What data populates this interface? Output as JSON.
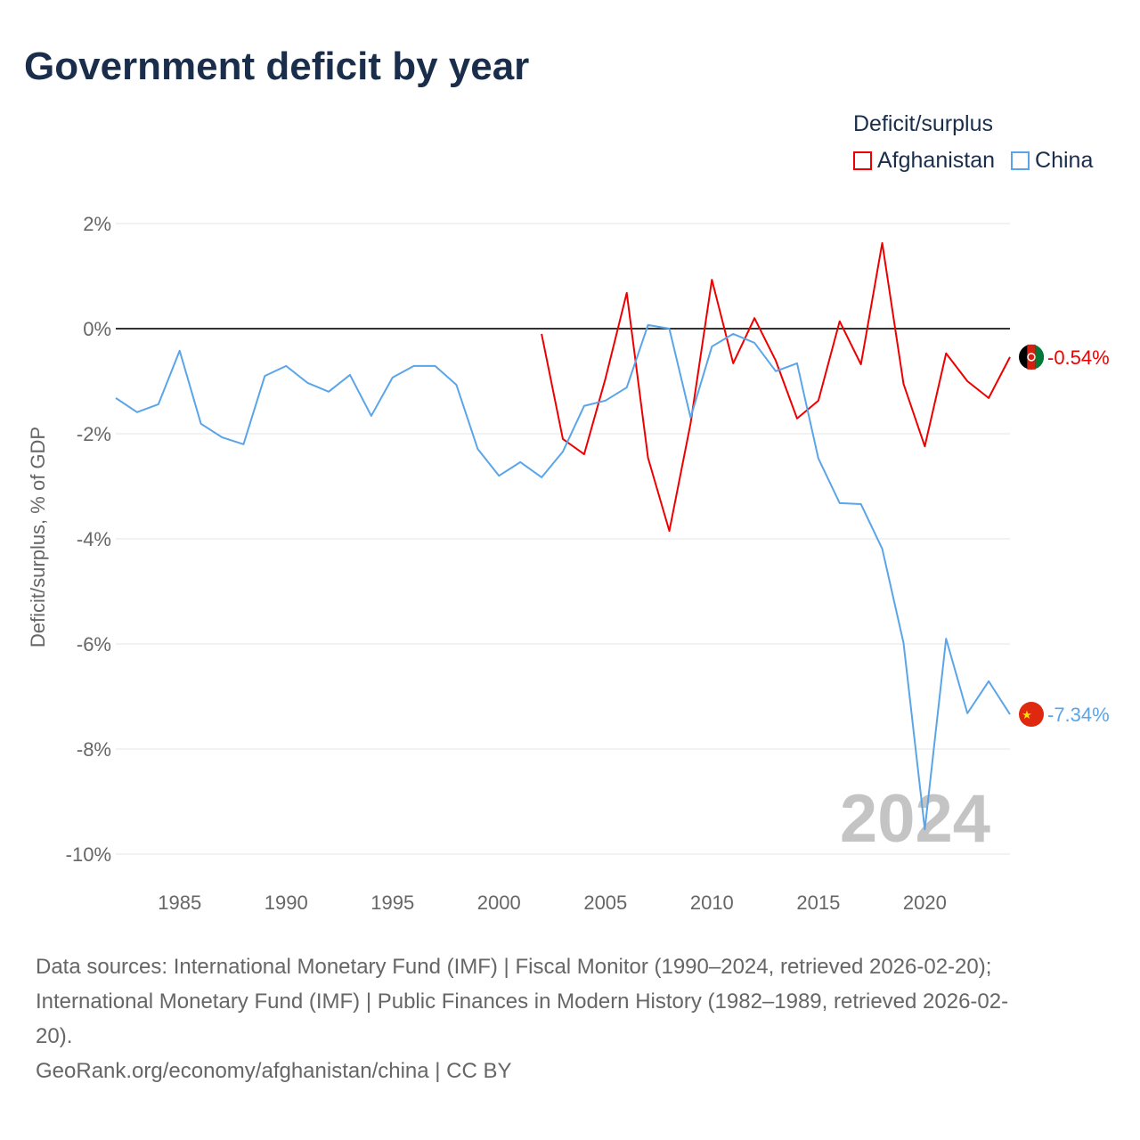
{
  "title": "Government deficit by year",
  "chart_data": {
    "type": "line",
    "title": "Government deficit by year",
    "xlabel": "",
    "ylabel": "Deficit/surplus, % of GDP",
    "ylim": [
      -10,
      2
    ],
    "xlim": [
      1982,
      2024
    ],
    "yticks": [
      2,
      0,
      -2,
      -4,
      -6,
      -8,
      -10
    ],
    "ytick_labels": [
      "2%",
      "0%",
      "-2%",
      "-4%",
      "-6%",
      "-8%",
      "-10%"
    ],
    "xticks": [
      1985,
      1990,
      1995,
      2000,
      2005,
      2010,
      2015,
      2020
    ],
    "xtick_labels": [
      "1985",
      "1990",
      "1995",
      "2000",
      "2005",
      "2010",
      "2015",
      "2020"
    ],
    "grid": true,
    "legend_title": "Deficit/surplus",
    "legend_position": "top-right",
    "year_watermark": "2024",
    "series": [
      {
        "name": "Afghanistan",
        "color": "#ee0000",
        "end_label": "-0.54%",
        "x": [
          2002,
          2003,
          2004,
          2005,
          2006,
          2007,
          2008,
          2009,
          2010,
          2011,
          2012,
          2013,
          2014,
          2015,
          2016,
          2017,
          2018,
          2019,
          2020,
          2021,
          2022,
          2023,
          2024
        ],
        "values": [
          -0.1,
          -2.1,
          -2.39,
          -0.95,
          0.68,
          -2.46,
          -3.85,
          -1.8,
          0.93,
          -0.66,
          0.2,
          -0.61,
          -1.71,
          -1.37,
          0.14,
          -0.68,
          1.63,
          -1.05,
          -2.24,
          -0.47,
          -1.0,
          -1.32,
          -0.54
        ]
      },
      {
        "name": "China",
        "color": "#5aa5ea",
        "end_label": "-7.34%",
        "x": [
          1982,
          1983,
          1984,
          1985,
          1986,
          1987,
          1988,
          1989,
          1990,
          1991,
          1992,
          1993,
          1994,
          1995,
          1996,
          1997,
          1998,
          1999,
          2000,
          2001,
          2002,
          2003,
          2004,
          2005,
          2006,
          2007,
          2008,
          2009,
          2010,
          2011,
          2012,
          2013,
          2014,
          2015,
          2016,
          2017,
          2018,
          2019,
          2020,
          2021,
          2022,
          2023,
          2024
        ],
        "values": [
          -1.32,
          -1.59,
          -1.44,
          -0.42,
          -1.81,
          -2.07,
          -2.2,
          -0.9,
          -0.71,
          -1.03,
          -1.2,
          -0.88,
          -1.66,
          -0.93,
          -0.71,
          -0.71,
          -1.07,
          -2.29,
          -2.8,
          -2.54,
          -2.83,
          -2.34,
          -1.47,
          -1.37,
          -1.12,
          0.07,
          0.0,
          -1.69,
          -0.34,
          -0.1,
          -0.27,
          -0.81,
          -0.66,
          -2.47,
          -3.32,
          -3.34,
          -4.19,
          -5.98,
          -9.53,
          -5.9,
          -7.32,
          -6.71,
          -7.34
        ]
      }
    ]
  },
  "source_lines": [
    "Data sources: International Monetary Fund (IMF) | Fiscal Monitor (1990–2024, retrieved 2026-02-20);",
    "International Monetary Fund (IMF) | Public Finances in Modern History (1982–1989, retrieved 2026-02-",
    "20).",
    "GeoRank.org/economy/afghanistan/china | CC BY"
  ]
}
